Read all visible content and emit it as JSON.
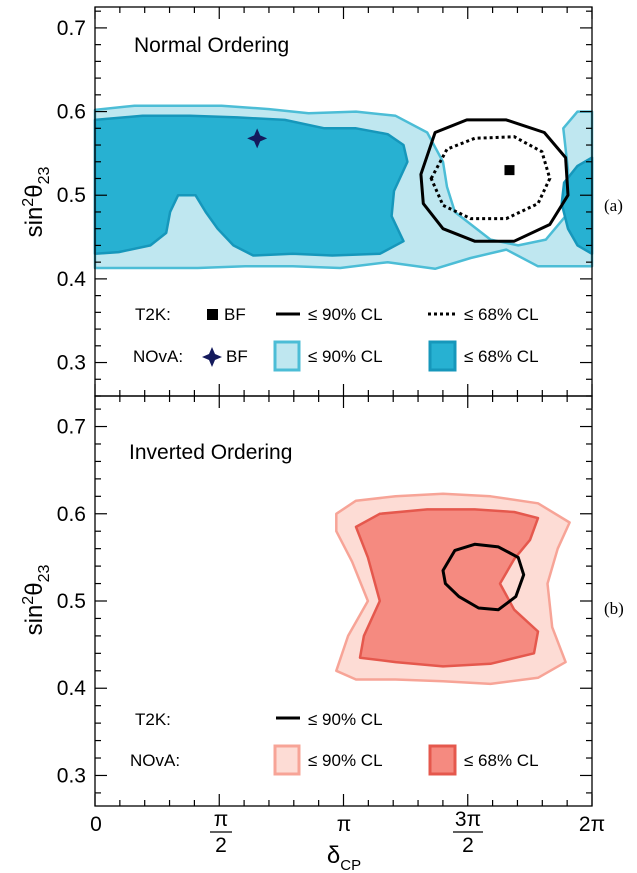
{
  "chart_data": [
    {
      "panel_label": "(a)",
      "title": "Normal Ordering",
      "type": "contour",
      "xlabel": "δ",
      "xlabel_sub": "CP",
      "ylabel_main": "sin",
      "ylabel_sup": "2",
      "ylabel_theta": "θ",
      "ylabel_sub": "23",
      "xlim": [
        0,
        6.2832
      ],
      "ylim": [
        0.26,
        0.725
      ],
      "y_ticks": [
        "0.3",
        "0.4",
        "0.5",
        "0.6",
        "0.7"
      ],
      "colors": {
        "nova_90": "#bfe7f0",
        "nova_90_edge": "#4cbdd6",
        "nova_68": "#27b1d2",
        "nova_68_edge": "#1697bb",
        "t2k": "#000000",
        "nova_bf": "#141a5c"
      },
      "t2k_best_fit": {
        "x": 5.24,
        "y": 0.53
      },
      "nova_best_fit": {
        "x": 2.05,
        "y": 0.568
      },
      "t2k_90": [
        [
          4.12,
          0.525
        ],
        [
          4.3,
          0.575
        ],
        [
          4.7,
          0.59
        ],
        [
          5.2,
          0.59
        ],
        [
          5.68,
          0.575
        ],
        [
          5.95,
          0.545
        ],
        [
          5.98,
          0.5
        ],
        [
          5.75,
          0.465
        ],
        [
          5.3,
          0.445
        ],
        [
          4.8,
          0.445
        ],
        [
          4.4,
          0.46
        ],
        [
          4.15,
          0.49
        ]
      ],
      "t2k_68": [
        [
          4.25,
          0.52
        ],
        [
          4.45,
          0.555
        ],
        [
          4.8,
          0.568
        ],
        [
          5.3,
          0.57
        ],
        [
          5.65,
          0.552
        ],
        [
          5.75,
          0.52
        ],
        [
          5.6,
          0.49
        ],
        [
          5.2,
          0.472
        ],
        [
          4.75,
          0.472
        ],
        [
          4.4,
          0.488
        ]
      ],
      "nova_90_band": [
        [
          0,
          0.602
        ],
        [
          0.5,
          0.607
        ],
        [
          1.0,
          0.607
        ],
        [
          1.6,
          0.607
        ],
        [
          2.2,
          0.603
        ],
        [
          2.7,
          0.598
        ],
        [
          3.3,
          0.6
        ],
        [
          3.8,
          0.595
        ],
        [
          4.2,
          0.575
        ],
        [
          4.4,
          0.54
        ],
        [
          4.45,
          0.51
        ],
        [
          4.55,
          0.48
        ],
        [
          5.0,
          0.447
        ],
        [
          5.35,
          0.44
        ],
        [
          5.7,
          0.447
        ],
        [
          5.95,
          0.475
        ],
        [
          5.98,
          0.53
        ],
        [
          5.92,
          0.58
        ],
        [
          6.1,
          0.6
        ],
        [
          6.283,
          0.6
        ],
        [
          6.283,
          0.415
        ],
        [
          5.6,
          0.415
        ],
        [
          5.2,
          0.435
        ],
        [
          4.75,
          0.425
        ],
        [
          4.3,
          0.412
        ],
        [
          3.7,
          0.42
        ],
        [
          3.1,
          0.413
        ],
        [
          2.5,
          0.415
        ],
        [
          1.9,
          0.415
        ],
        [
          1.3,
          0.413
        ],
        [
          0.8,
          0.413
        ],
        [
          0,
          0.413
        ]
      ],
      "nova_68_band": [
        [
          0,
          0.59
        ],
        [
          0.6,
          0.595
        ],
        [
          1.2,
          0.595
        ],
        [
          1.8,
          0.593
        ],
        [
          2.4,
          0.59
        ],
        [
          2.9,
          0.58
        ],
        [
          3.3,
          0.58
        ],
        [
          3.7,
          0.573
        ],
        [
          3.9,
          0.56
        ],
        [
          3.95,
          0.54
        ],
        [
          3.78,
          0.505
        ],
        [
          3.75,
          0.475
        ],
        [
          3.9,
          0.445
        ],
        [
          3.6,
          0.43
        ],
        [
          3.0,
          0.428
        ],
        [
          2.5,
          0.43
        ],
        [
          2.0,
          0.428
        ],
        [
          1.75,
          0.44
        ],
        [
          1.55,
          0.46
        ],
        [
          1.4,
          0.48
        ],
        [
          1.27,
          0.5
        ],
        [
          1.05,
          0.5
        ],
        [
          0.95,
          0.48
        ],
        [
          0.9,
          0.455
        ],
        [
          0.7,
          0.44
        ],
        [
          0.3,
          0.432
        ],
        [
          0,
          0.43
        ]
      ],
      "nova_68_right": [
        [
          6.283,
          0.545
        ],
        [
          6.1,
          0.535
        ],
        [
          5.93,
          0.515
        ],
        [
          5.9,
          0.49
        ],
        [
          5.98,
          0.46
        ],
        [
          6.1,
          0.44
        ],
        [
          6.283,
          0.43
        ]
      ],
      "legend": {
        "t2k_label": "T2K:",
        "nova_label": "NOvA:",
        "bf": "BF",
        "cl90": "≤ 90% CL",
        "cl68": "≤ 68% CL"
      }
    },
    {
      "panel_label": "(b)",
      "title": "Inverted Ordering",
      "type": "contour",
      "xlabel": "δ",
      "xlabel_sub": "CP",
      "ylabel_main": "sin",
      "ylabel_sup": "2",
      "ylabel_theta": "θ",
      "ylabel_sub": "23",
      "xlim": [
        0,
        6.2832
      ],
      "ylim": [
        0.265,
        0.735
      ],
      "y_ticks": [
        "0.3",
        "0.4",
        "0.5",
        "0.6",
        "0.7"
      ],
      "x_ticks": [
        "0",
        "π/2",
        "π",
        "3π/2",
        "2π"
      ],
      "colors": {
        "nova_90": "#fddcd5",
        "nova_90_edge": "#f7a497",
        "nova_68": "#f58a80",
        "nova_68_edge": "#e5584d",
        "t2k": "#000000"
      },
      "t2k_90": [
        [
          4.4,
          0.535
        ],
        [
          4.55,
          0.558
        ],
        [
          4.8,
          0.565
        ],
        [
          5.1,
          0.562
        ],
        [
          5.35,
          0.55
        ],
        [
          5.42,
          0.53
        ],
        [
          5.32,
          0.505
        ],
        [
          5.1,
          0.49
        ],
        [
          4.85,
          0.492
        ],
        [
          4.6,
          0.505
        ],
        [
          4.43,
          0.52
        ]
      ],
      "nova_90_band": [
        [
          3.05,
          0.6
        ],
        [
          3.3,
          0.615
        ],
        [
          3.8,
          0.62
        ],
        [
          4.4,
          0.623
        ],
        [
          5.0,
          0.62
        ],
        [
          5.6,
          0.612
        ],
        [
          6.0,
          0.59
        ],
        [
          5.85,
          0.56
        ],
        [
          5.72,
          0.52
        ],
        [
          5.78,
          0.47
        ],
        [
          5.95,
          0.43
        ],
        [
          5.6,
          0.412
        ],
        [
          5.0,
          0.405
        ],
        [
          4.4,
          0.408
        ],
        [
          3.8,
          0.41
        ],
        [
          3.3,
          0.41
        ],
        [
          3.05,
          0.42
        ],
        [
          3.2,
          0.46
        ],
        [
          3.45,
          0.5
        ],
        [
          3.25,
          0.545
        ],
        [
          3.05,
          0.58
        ]
      ],
      "nova_68_band": [
        [
          3.3,
          0.585
        ],
        [
          3.6,
          0.6
        ],
        [
          4.2,
          0.605
        ],
        [
          4.8,
          0.605
        ],
        [
          5.3,
          0.602
        ],
        [
          5.6,
          0.595
        ],
        [
          5.5,
          0.57
        ],
        [
          5.3,
          0.548
        ],
        [
          5.12,
          0.52
        ],
        [
          5.3,
          0.49
        ],
        [
          5.6,
          0.465
        ],
        [
          5.55,
          0.44
        ],
        [
          5.0,
          0.428
        ],
        [
          4.4,
          0.425
        ],
        [
          3.8,
          0.43
        ],
        [
          3.35,
          0.435
        ],
        [
          3.4,
          0.46
        ],
        [
          3.6,
          0.5
        ],
        [
          3.45,
          0.55
        ]
      ],
      "legend": {
        "t2k_label": "T2K:",
        "nova_label": "NOvA:",
        "cl90": "≤ 90% CL",
        "cl68": "≤ 68% CL"
      }
    }
  ],
  "x_tick_labels": {
    "zero": "0",
    "pi_num": "π",
    "pi_den": "2",
    "pi": "π",
    "three_pi_num": "3π",
    "three_pi_den": "2",
    "two_pi": "2π"
  }
}
